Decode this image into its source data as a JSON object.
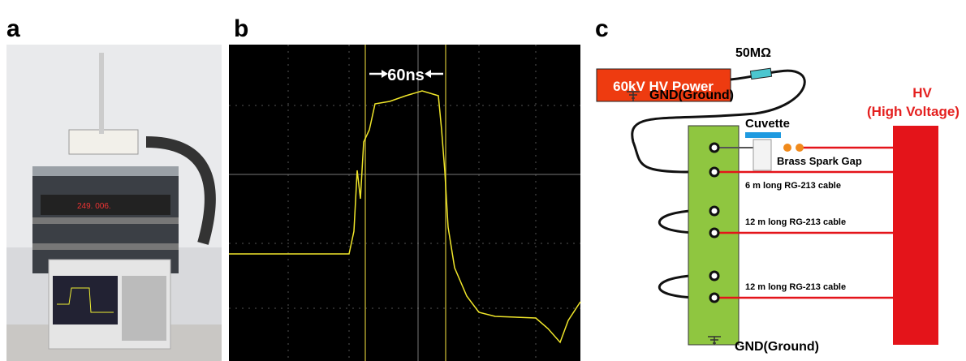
{
  "panels": {
    "a": "a",
    "b": "b",
    "c": "c"
  },
  "scope": {
    "pulse_width": "60ns"
  },
  "circuit": {
    "power": "60kV HV Power",
    "resistor": "50MΩ",
    "gnd_top": "GND(Ground)",
    "hv": "HV",
    "hv_full": "(High Voltage)",
    "cuvette": "Cuvette",
    "spark_gap": "Brass Spark Gap",
    "cables": [
      "6 m long RG-213 cable",
      "12 m long RG-213 cable",
      "12 m long RG-213 cable"
    ],
    "gnd_bottom": "GND(Ground)"
  }
}
